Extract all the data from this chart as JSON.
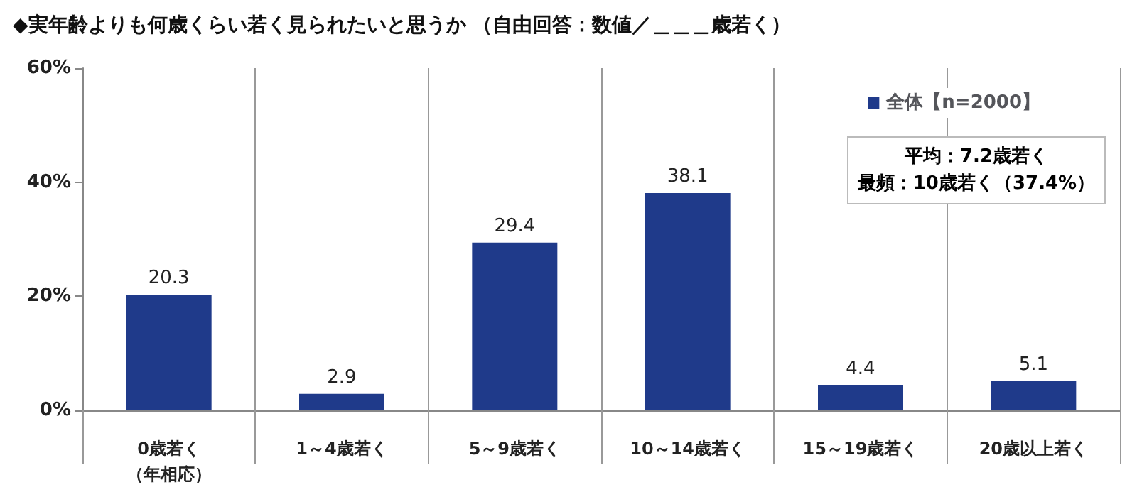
{
  "chart_data": {
    "type": "bar",
    "title": "◆実年齢よりも何歳くらい若く見られたいと思うか （自由回答：数値／＿＿＿歳若く）",
    "categories": [
      "0歳若く（年相応）",
      "1～4歳若く",
      "5～9歳若く",
      "10～14歳若く",
      "15～19歳若く",
      "20歳以上若く"
    ],
    "series": [
      {
        "name": "全体【n=2000】",
        "color": "#1f3a8a",
        "values": [
          20.3,
          2.9,
          29.4,
          38.1,
          4.4,
          5.1
        ]
      }
    ],
    "ylim": [
      0,
      60
    ],
    "yticks": [
      {
        "value": 0,
        "label": "0%"
      },
      {
        "value": 20,
        "label": "20%"
      },
      {
        "value": 40,
        "label": "40%"
      },
      {
        "value": 60,
        "label": "60%"
      }
    ],
    "grid": "x",
    "legend": "top right",
    "data_labels": true,
    "annotations": [
      "平均：7.2歳若く",
      "最頻：10歳若く（37.4%）"
    ]
  }
}
